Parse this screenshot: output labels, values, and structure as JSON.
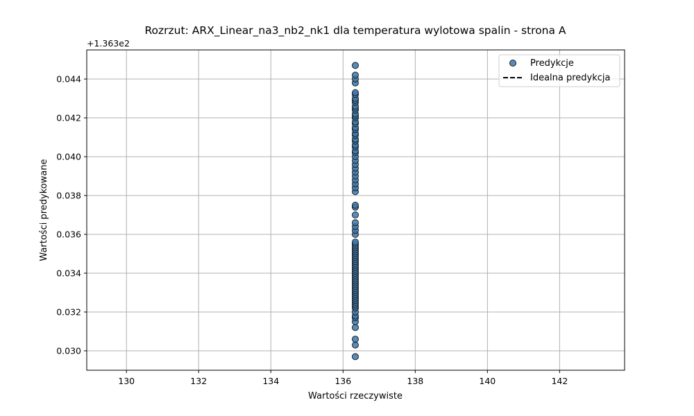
{
  "chart_data": {
    "type": "scatter",
    "title": "Rozrzut: ARX_Linear_na3_nb2_nk1 dla temperatura wylotowa spalin - strona A",
    "xlabel": "Wartości rzeczywiste",
    "ylabel": "Wartości predykowane",
    "y_offset_text": "+1.363e2",
    "xlim": [
      128.9,
      143.8
    ],
    "ylim": [
      0.029,
      0.0455
    ],
    "x_ticks": [
      130,
      132,
      134,
      136,
      138,
      140,
      142
    ],
    "x_tick_labels": [
      "130",
      "132",
      "134",
      "136",
      "138",
      "140",
      "142"
    ],
    "y_ticks": [
      0.03,
      0.032,
      0.034,
      0.036,
      0.038,
      0.04,
      0.042,
      0.044
    ],
    "y_tick_labels": [
      "0.030",
      "0.032",
      "0.034",
      "0.036",
      "0.038",
      "0.040",
      "0.042",
      "0.044"
    ],
    "grid": true,
    "legend_position": "top-right",
    "marker_color": "#3a78b0",
    "marker_edge_color": "#1a1a1a",
    "series": [
      {
        "name": "Predykcje",
        "x_value": 136.34,
        "y": [
          0.0297,
          0.0303,
          0.0306,
          0.0312,
          0.0315,
          0.0317,
          0.0318,
          0.032,
          0.0322,
          0.0323,
          0.0324,
          0.0325,
          0.0326,
          0.0327,
          0.0328,
          0.0329,
          0.033,
          0.0331,
          0.0332,
          0.0333,
          0.0334,
          0.0335,
          0.0336,
          0.0337,
          0.0338,
          0.0339,
          0.034,
          0.0341,
          0.0342,
          0.0343,
          0.0344,
          0.0345,
          0.0346,
          0.0347,
          0.0348,
          0.0349,
          0.035,
          0.0351,
          0.0352,
          0.0353,
          0.0354,
          0.0355,
          0.0356,
          0.036,
          0.0362,
          0.0364,
          0.0366,
          0.037,
          0.0374,
          0.0375,
          0.0382,
          0.0384,
          0.0386,
          0.0388,
          0.039,
          0.0392,
          0.0394,
          0.0396,
          0.0398,
          0.04,
          0.0402,
          0.0403,
          0.0405,
          0.0406,
          0.0408,
          0.0409,
          0.0411,
          0.0412,
          0.0414,
          0.0415,
          0.0417,
          0.0418,
          0.042,
          0.0421,
          0.0422,
          0.0424,
          0.0425,
          0.0426,
          0.0428,
          0.0429,
          0.043,
          0.0432,
          0.0433,
          0.0438,
          0.044,
          0.0442,
          0.0447
        ]
      },
      {
        "name": "Idealna predykcja",
        "style": "dashed",
        "color": "#000000"
      }
    ]
  }
}
